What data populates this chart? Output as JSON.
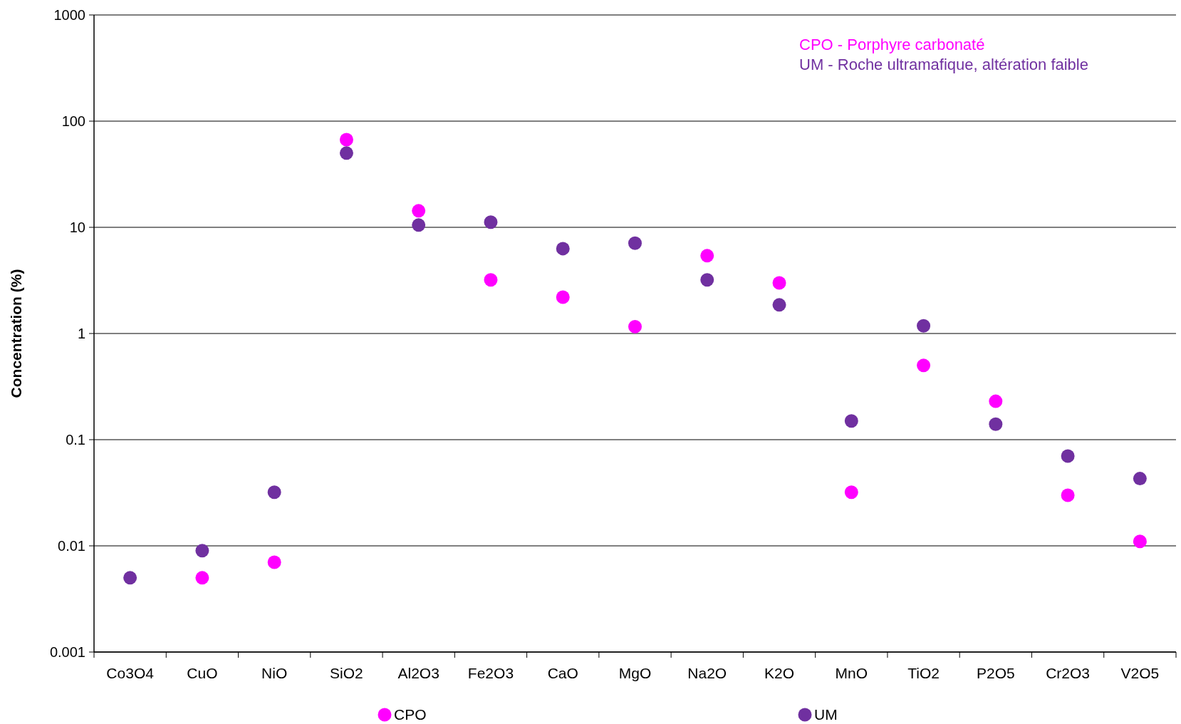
{
  "chart_data": {
    "type": "scatter",
    "ylabel": "Concentration (%)",
    "categories": [
      "Co3O4",
      "CuO",
      "NiO",
      "SiO2",
      "Al2O3",
      "Fe2O3",
      "CaO",
      "MgO",
      "Na2O",
      "K2O",
      "MnO",
      "TiO2",
      "P2O5",
      "Cr2O3",
      "V2O5"
    ],
    "series": [
      {
        "name": "CPO",
        "color": "#ff00ff",
        "values": [
          null,
          0.005,
          0.007,
          67,
          14.3,
          3.2,
          2.2,
          1.16,
          5.4,
          3.0,
          0.032,
          0.5,
          0.23,
          0.03,
          0.011
        ]
      },
      {
        "name": "UM",
        "color": "#7030a0",
        "values": [
          0.005,
          0.009,
          0.032,
          50,
          10.5,
          11.2,
          6.3,
          7.1,
          3.2,
          1.86,
          0.15,
          1.18,
          0.14,
          0.07,
          0.043
        ]
      }
    ],
    "annotations": [
      "CPO - Porphyre carbonaté",
      "UM - Roche ultramafique, altération faible"
    ],
    "log": true,
    "ylim": [
      0.001,
      1000
    ],
    "yticks": [
      0.001,
      0.01,
      0.1,
      1,
      10,
      100,
      1000
    ],
    "grid": "y",
    "legend": "bottom",
    "marker": "circle"
  }
}
